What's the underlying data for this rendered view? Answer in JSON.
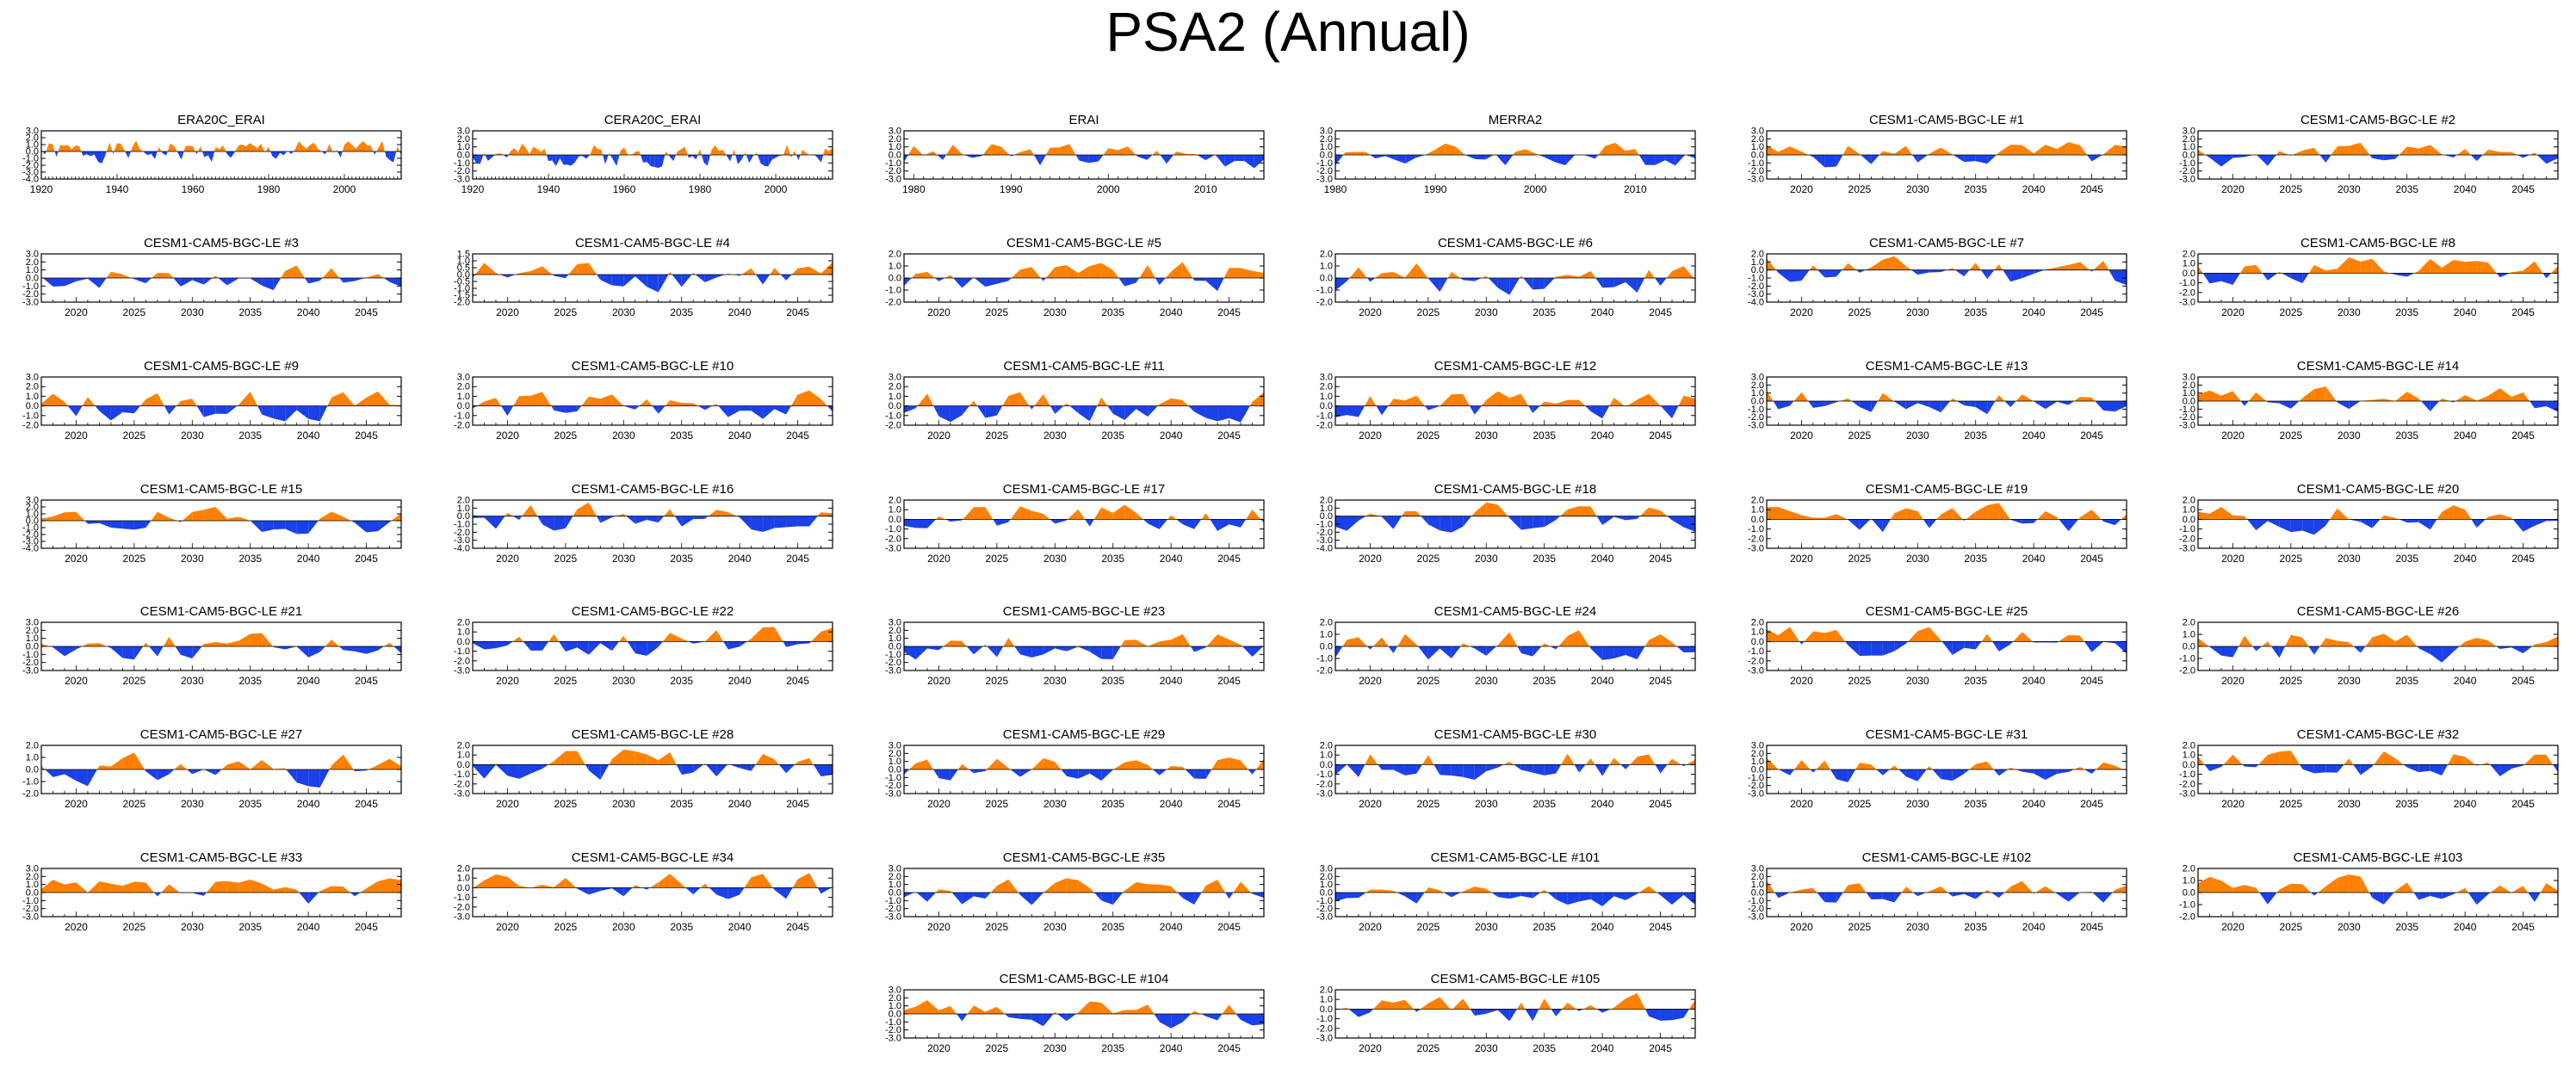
{
  "title": "PSA2 (Annual)",
  "colors": {
    "positive": "#ff8000",
    "negative": "#1a40e8",
    "axis": "#000000"
  },
  "chart_data": [
    {
      "title": "ERA20C_ERAI",
      "type": "area",
      "xlim": [
        1920,
        2015
      ],
      "xticks": [
        1920,
        1940,
        1960,
        1980,
        2000
      ],
      "ylim": [
        -4,
        3
      ],
      "yticks": [
        3,
        2,
        1,
        0,
        -1,
        -2,
        -3,
        -4
      ],
      "seed": 1,
      "amp": 1.3
    },
    {
      "title": "CERA20C_ERAI",
      "type": "area",
      "xlim": [
        1920,
        2015
      ],
      "xticks": [
        1920,
        1940,
        1960,
        1980,
        2000
      ],
      "ylim": [
        -3,
        3
      ],
      "yticks": [
        3,
        2,
        1,
        0,
        -1,
        -2,
        -3
      ],
      "seed": 2,
      "amp": 1.2
    },
    {
      "title": "ERAI",
      "type": "area",
      "xlim": [
        1979,
        2016
      ],
      "xticks": [
        1980,
        1990,
        2000,
        2010
      ],
      "ylim": [
        -3,
        3
      ],
      "yticks": [
        3,
        2,
        1,
        0,
        -1,
        -2,
        -3
      ],
      "seed": 3,
      "amp": 1.4
    },
    {
      "title": "MERRA2",
      "type": "area",
      "xlim": [
        1980,
        2016
      ],
      "xticks": [
        1980,
        1990,
        2000,
        2010
      ],
      "ylim": [
        -3,
        3
      ],
      "yticks": [
        3,
        2,
        1,
        0,
        -1,
        -2,
        -3
      ],
      "seed": 4,
      "amp": 1.3
    },
    {
      "title": "CESM1-CAM5-BGC-LE #1",
      "type": "area",
      "xlim": [
        2017,
        2048
      ],
      "xticks": [
        2020,
        2025,
        2030,
        2035,
        2040,
        2045
      ],
      "ylim": [
        -3,
        3
      ],
      "yticks": [
        3,
        2,
        1,
        0,
        -1,
        -2,
        -3
      ],
      "seed": 5,
      "amp": 1.4
    },
    {
      "title": "CESM1-CAM5-BGC-LE #2",
      "type": "area",
      "xlim": [
        2017,
        2048
      ],
      "xticks": [
        2020,
        2025,
        2030,
        2035,
        2040,
        2045
      ],
      "ylim": [
        -3,
        3
      ],
      "yticks": [
        3,
        2,
        1,
        0,
        -1,
        -2,
        -3
      ],
      "seed": 6,
      "amp": 1.3
    },
    {
      "title": "CESM1-CAM5-BGC-LE #3",
      "type": "area",
      "xlim": [
        2017,
        2048
      ],
      "xticks": [
        2020,
        2025,
        2030,
        2035,
        2040,
        2045
      ],
      "ylim": [
        -3,
        3
      ],
      "yticks": [
        3,
        2,
        1,
        0,
        -1,
        -2,
        -3
      ],
      "seed": 7,
      "amp": 1.3
    },
    {
      "title": "CESM1-CAM5-BGC-LE #4",
      "type": "area",
      "xlim": [
        2017,
        2048
      ],
      "xticks": [
        2020,
        2025,
        2030,
        2035,
        2040,
        2045
      ],
      "ylim": [
        -2,
        1.5
      ],
      "yticks": [
        1.5,
        1,
        0.5,
        0,
        -0.5,
        -1,
        -1.5,
        -2
      ],
      "seed": 8,
      "amp": 1.0
    },
    {
      "title": "CESM1-CAM5-BGC-LE #5",
      "type": "area",
      "xlim": [
        2017,
        2048
      ],
      "xticks": [
        2020,
        2025,
        2030,
        2035,
        2040,
        2045
      ],
      "ylim": [
        -2,
        2
      ],
      "yticks": [
        2,
        1,
        0,
        -1,
        -2
      ],
      "seed": 9,
      "amp": 1.1
    },
    {
      "title": "CESM1-CAM5-BGC-LE #6",
      "type": "area",
      "xlim": [
        2017,
        2048
      ],
      "xticks": [
        2020,
        2025,
        2030,
        2035,
        2040,
        2045
      ],
      "ylim": [
        -2,
        2
      ],
      "yticks": [
        2,
        1,
        0,
        -1,
        -2
      ],
      "seed": 10,
      "amp": 1.1
    },
    {
      "title": "CESM1-CAM5-BGC-LE #7",
      "type": "area",
      "xlim": [
        2017,
        2048
      ],
      "xticks": [
        2020,
        2025,
        2030,
        2035,
        2040,
        2045
      ],
      "ylim": [
        -4,
        2
      ],
      "yticks": [
        2,
        1,
        0,
        -1,
        -2,
        -3,
        -4
      ],
      "seed": 11,
      "amp": 1.6
    },
    {
      "title": "CESM1-CAM5-BGC-LE #8",
      "type": "area",
      "xlim": [
        2017,
        2048
      ],
      "xticks": [
        2020,
        2025,
        2030,
        2035,
        2040,
        2045
      ],
      "ylim": [
        -3,
        2
      ],
      "yticks": [
        2,
        1,
        0,
        -1,
        -2,
        -3
      ],
      "seed": 12,
      "amp": 1.4
    },
    {
      "title": "CESM1-CAM5-BGC-LE #9",
      "type": "area",
      "xlim": [
        2017,
        2048
      ],
      "xticks": [
        2020,
        2025,
        2030,
        2035,
        2040,
        2045
      ],
      "ylim": [
        -2,
        3
      ],
      "yticks": [
        3,
        2,
        1,
        0,
        -1,
        -2
      ],
      "seed": 13,
      "amp": 1.4
    },
    {
      "title": "CESM1-CAM5-BGC-LE #10",
      "type": "area",
      "xlim": [
        2017,
        2048
      ],
      "xticks": [
        2020,
        2025,
        2030,
        2035,
        2040,
        2045
      ],
      "ylim": [
        -2,
        3
      ],
      "yticks": [
        3,
        2,
        1,
        0,
        -1,
        -2
      ],
      "seed": 14,
      "amp": 1.3
    },
    {
      "title": "CESM1-CAM5-BGC-LE #11",
      "type": "area",
      "xlim": [
        2017,
        2048
      ],
      "xticks": [
        2020,
        2025,
        2030,
        2035,
        2040,
        2045
      ],
      "ylim": [
        -2,
        3
      ],
      "yticks": [
        3,
        2,
        1,
        0,
        -1,
        -2
      ],
      "seed": 15,
      "amp": 1.3
    },
    {
      "title": "CESM1-CAM5-BGC-LE #12",
      "type": "area",
      "xlim": [
        2017,
        2048
      ],
      "xticks": [
        2020,
        2025,
        2030,
        2035,
        2040,
        2045
      ],
      "ylim": [
        -2,
        3
      ],
      "yticks": [
        3,
        2,
        1,
        0,
        -1,
        -2
      ],
      "seed": 16,
      "amp": 1.3
    },
    {
      "title": "CESM1-CAM5-BGC-LE #13",
      "type": "area",
      "xlim": [
        2017,
        2048
      ],
      "xticks": [
        2020,
        2025,
        2030,
        2035,
        2040,
        2045
      ],
      "ylim": [
        -3,
        3
      ],
      "yticks": [
        3,
        2,
        1,
        0,
        -1,
        -2,
        -3
      ],
      "seed": 17,
      "amp": 1.4
    },
    {
      "title": "CESM1-CAM5-BGC-LE #14",
      "type": "area",
      "xlim": [
        2017,
        2048
      ],
      "xticks": [
        2020,
        2025,
        2030,
        2035,
        2040,
        2045
      ],
      "ylim": [
        -3,
        3
      ],
      "yticks": [
        3,
        2,
        1,
        0,
        -1,
        -2,
        -3
      ],
      "seed": 18,
      "amp": 1.4
    },
    {
      "title": "CESM1-CAM5-BGC-LE #15",
      "type": "area",
      "xlim": [
        2017,
        2048
      ],
      "xticks": [
        2020,
        2025,
        2030,
        2035,
        2040,
        2045
      ],
      "ylim": [
        -4,
        3
      ],
      "yticks": [
        3,
        2,
        1,
        0,
        -1,
        -2,
        -3,
        -4
      ],
      "seed": 19,
      "amp": 1.5
    },
    {
      "title": "CESM1-CAM5-BGC-LE #16",
      "type": "area",
      "xlim": [
        2017,
        2048
      ],
      "xticks": [
        2020,
        2025,
        2030,
        2035,
        2040,
        2045
      ],
      "ylim": [
        -4,
        2
      ],
      "yticks": [
        2,
        1,
        0,
        -1,
        -2,
        -3,
        -4
      ],
      "seed": 20,
      "amp": 1.5
    },
    {
      "title": "CESM1-CAM5-BGC-LE #17",
      "type": "area",
      "xlim": [
        2017,
        2048
      ],
      "xticks": [
        2020,
        2025,
        2030,
        2035,
        2040,
        2045
      ],
      "ylim": [
        -3,
        2
      ],
      "yticks": [
        2,
        1,
        0,
        -1,
        -2,
        -3
      ],
      "seed": 21,
      "amp": 1.3
    },
    {
      "title": "CESM1-CAM5-BGC-LE #18",
      "type": "area",
      "xlim": [
        2017,
        2048
      ],
      "xticks": [
        2020,
        2025,
        2030,
        2035,
        2040,
        2045
      ],
      "ylim": [
        -4,
        2
      ],
      "yticks": [
        2,
        1,
        0,
        -1,
        -2,
        -3,
        -4
      ],
      "seed": 22,
      "amp": 1.5
    },
    {
      "title": "CESM1-CAM5-BGC-LE #19",
      "type": "area",
      "xlim": [
        2017,
        2048
      ],
      "xticks": [
        2020,
        2025,
        2030,
        2035,
        2040,
        2045
      ],
      "ylim": [
        -3,
        2
      ],
      "yticks": [
        2,
        1,
        0,
        -1,
        -2,
        -3
      ],
      "seed": 23,
      "amp": 1.3
    },
    {
      "title": "CESM1-CAM5-BGC-LE #20",
      "type": "area",
      "xlim": [
        2017,
        2048
      ],
      "xticks": [
        2020,
        2025,
        2030,
        2035,
        2040,
        2045
      ],
      "ylim": [
        -3,
        2
      ],
      "yticks": [
        2,
        1,
        0,
        -1,
        -2,
        -3
      ],
      "seed": 24,
      "amp": 1.3
    },
    {
      "title": "CESM1-CAM5-BGC-LE #21",
      "type": "area",
      "xlim": [
        2017,
        2048
      ],
      "xticks": [
        2020,
        2025,
        2030,
        2035,
        2040,
        2045
      ],
      "ylim": [
        -3,
        3
      ],
      "yticks": [
        3,
        2,
        1,
        0,
        -1,
        -2,
        -3
      ],
      "seed": 25,
      "amp": 1.4
    },
    {
      "title": "CESM1-CAM5-BGC-LE #22",
      "type": "area",
      "xlim": [
        2017,
        2048
      ],
      "xticks": [
        2020,
        2025,
        2030,
        2035,
        2040,
        2045
      ],
      "ylim": [
        -3,
        2
      ],
      "yticks": [
        2,
        1,
        0,
        -1,
        -2,
        -3
      ],
      "seed": 26,
      "amp": 1.3
    },
    {
      "title": "CESM1-CAM5-BGC-LE #23",
      "type": "area",
      "xlim": [
        2017,
        2048
      ],
      "xticks": [
        2020,
        2025,
        2030,
        2035,
        2040,
        2045
      ],
      "ylim": [
        -3,
        3
      ],
      "yticks": [
        3,
        2,
        1,
        0,
        -1,
        -2,
        -3
      ],
      "seed": 27,
      "amp": 1.4
    },
    {
      "title": "CESM1-CAM5-BGC-LE #24",
      "type": "area",
      "xlim": [
        2017,
        2048
      ],
      "xticks": [
        2020,
        2025,
        2030,
        2035,
        2040,
        2045
      ],
      "ylim": [
        -2,
        2
      ],
      "yticks": [
        2,
        1,
        0,
        -1,
        -2
      ],
      "seed": 28,
      "amp": 1.1
    },
    {
      "title": "CESM1-CAM5-BGC-LE #25",
      "type": "area",
      "xlim": [
        2017,
        2048
      ],
      "xticks": [
        2020,
        2025,
        2030,
        2035,
        2040,
        2045
      ],
      "ylim": [
        -3,
        2
      ],
      "yticks": [
        2,
        1,
        0,
        -1,
        -2,
        -3
      ],
      "seed": 29,
      "amp": 1.3
    },
    {
      "title": "CESM1-CAM5-BGC-LE #26",
      "type": "area",
      "xlim": [
        2017,
        2048
      ],
      "xticks": [
        2020,
        2025,
        2030,
        2035,
        2040,
        2045
      ],
      "ylim": [
        -2,
        2
      ],
      "yticks": [
        2,
        1,
        0,
        -1,
        -2
      ],
      "seed": 30,
      "amp": 1.1
    },
    {
      "title": "CESM1-CAM5-BGC-LE #27",
      "type": "area",
      "xlim": [
        2017,
        2048
      ],
      "xticks": [
        2020,
        2025,
        2030,
        2035,
        2040,
        2045
      ],
      "ylim": [
        -2,
        2
      ],
      "yticks": [
        2,
        1,
        0,
        -1,
        -2
      ],
      "seed": 31,
      "amp": 1.1
    },
    {
      "title": "CESM1-CAM5-BGC-LE #28",
      "type": "area",
      "xlim": [
        2017,
        2048
      ],
      "xticks": [
        2020,
        2025,
        2030,
        2035,
        2040,
        2045
      ],
      "ylim": [
        -3,
        2
      ],
      "yticks": [
        2,
        1,
        0,
        -1,
        -2,
        -3
      ],
      "seed": 32,
      "amp": 1.3
    },
    {
      "title": "CESM1-CAM5-BGC-LE #29",
      "type": "area",
      "xlim": [
        2017,
        2048
      ],
      "xticks": [
        2020,
        2025,
        2030,
        2035,
        2040,
        2045
      ],
      "ylim": [
        -3,
        3
      ],
      "yticks": [
        3,
        2,
        1,
        0,
        -1,
        -2,
        -3
      ],
      "seed": 33,
      "amp": 1.4
    },
    {
      "title": "CESM1-CAM5-BGC-LE #30",
      "type": "area",
      "xlim": [
        2017,
        2048
      ],
      "xticks": [
        2020,
        2025,
        2030,
        2035,
        2040,
        2045
      ],
      "ylim": [
        -3,
        2
      ],
      "yticks": [
        2,
        1,
        0,
        -1,
        -2,
        -3
      ],
      "seed": 34,
      "amp": 1.3
    },
    {
      "title": "CESM1-CAM5-BGC-LE #31",
      "type": "area",
      "xlim": [
        2017,
        2048
      ],
      "xticks": [
        2020,
        2025,
        2030,
        2035,
        2040,
        2045
      ],
      "ylim": [
        -3,
        3
      ],
      "yticks": [
        3,
        2,
        1,
        0,
        -1,
        -2,
        -3
      ],
      "seed": 35,
      "amp": 1.4
    },
    {
      "title": "CESM1-CAM5-BGC-LE #32",
      "type": "area",
      "xlim": [
        2017,
        2048
      ],
      "xticks": [
        2020,
        2025,
        2030,
        2035,
        2040,
        2045
      ],
      "ylim": [
        -3,
        2
      ],
      "yticks": [
        2,
        1,
        0,
        -1,
        -2,
        -3
      ],
      "seed": 36,
      "amp": 1.3
    },
    {
      "title": "CESM1-CAM5-BGC-LE #33",
      "type": "area",
      "xlim": [
        2017,
        2048
      ],
      "xticks": [
        2020,
        2025,
        2030,
        2035,
        2040,
        2045
      ],
      "ylim": [
        -3,
        3
      ],
      "yticks": [
        3,
        2,
        1,
        0,
        -1,
        -2,
        -3
      ],
      "seed": 37,
      "amp": 1.4
    },
    {
      "title": "CESM1-CAM5-BGC-LE #34",
      "type": "area",
      "xlim": [
        2017,
        2048
      ],
      "xticks": [
        2020,
        2025,
        2030,
        2035,
        2040,
        2045
      ],
      "ylim": [
        -3,
        2
      ],
      "yticks": [
        2,
        1,
        0,
        -1,
        -2,
        -3
      ],
      "seed": 38,
      "amp": 1.3
    },
    {
      "title": "CESM1-CAM5-BGC-LE #35",
      "type": "area",
      "xlim": [
        2017,
        2048
      ],
      "xticks": [
        2020,
        2025,
        2030,
        2035,
        2040,
        2045
      ],
      "ylim": [
        -3,
        3
      ],
      "yticks": [
        3,
        2,
        1,
        0,
        -1,
        -2,
        -3
      ],
      "seed": 39,
      "amp": 1.4
    },
    {
      "title": "CESM1-CAM5-BGC-LE #101",
      "type": "area",
      "xlim": [
        2017,
        2048
      ],
      "xticks": [
        2020,
        2025,
        2030,
        2035,
        2040,
        2045
      ],
      "ylim": [
        -3,
        3
      ],
      "yticks": [
        3,
        2,
        1,
        0,
        -1,
        -2,
        -3
      ],
      "seed": 40,
      "amp": 1.4
    },
    {
      "title": "CESM1-CAM5-BGC-LE #102",
      "type": "area",
      "xlim": [
        2017,
        2048
      ],
      "xticks": [
        2020,
        2025,
        2030,
        2035,
        2040,
        2045
      ],
      "ylim": [
        -3,
        3
      ],
      "yticks": [
        3,
        2,
        1,
        0,
        -1,
        -2,
        -3
      ],
      "seed": 41,
      "amp": 1.4
    },
    {
      "title": "CESM1-CAM5-BGC-LE #103",
      "type": "area",
      "xlim": [
        2017,
        2048
      ],
      "xticks": [
        2020,
        2025,
        2030,
        2035,
        2040,
        2045
      ],
      "ylim": [
        -2,
        2
      ],
      "yticks": [
        2,
        1,
        0,
        -1,
        -2
      ],
      "seed": 42,
      "amp": 1.1
    },
    {
      "title": "CESM1-CAM5-BGC-LE #104",
      "type": "area",
      "xlim": [
        2017,
        2048
      ],
      "xticks": [
        2020,
        2025,
        2030,
        2035,
        2040,
        2045
      ],
      "ylim": [
        -3,
        3
      ],
      "yticks": [
        3,
        2,
        1,
        0,
        -1,
        -2,
        -3
      ],
      "seed": 43,
      "amp": 1.4
    },
    {
      "title": "CESM1-CAM5-BGC-LE #105",
      "type": "area",
      "xlim": [
        2017,
        2048
      ],
      "xticks": [
        2020,
        2025,
        2030,
        2035,
        2040,
        2045
      ],
      "ylim": [
        -3,
        2
      ],
      "yticks": [
        2,
        1,
        0,
        -1,
        -2,
        -3
      ],
      "seed": 44,
      "amp": 1.3
    }
  ]
}
